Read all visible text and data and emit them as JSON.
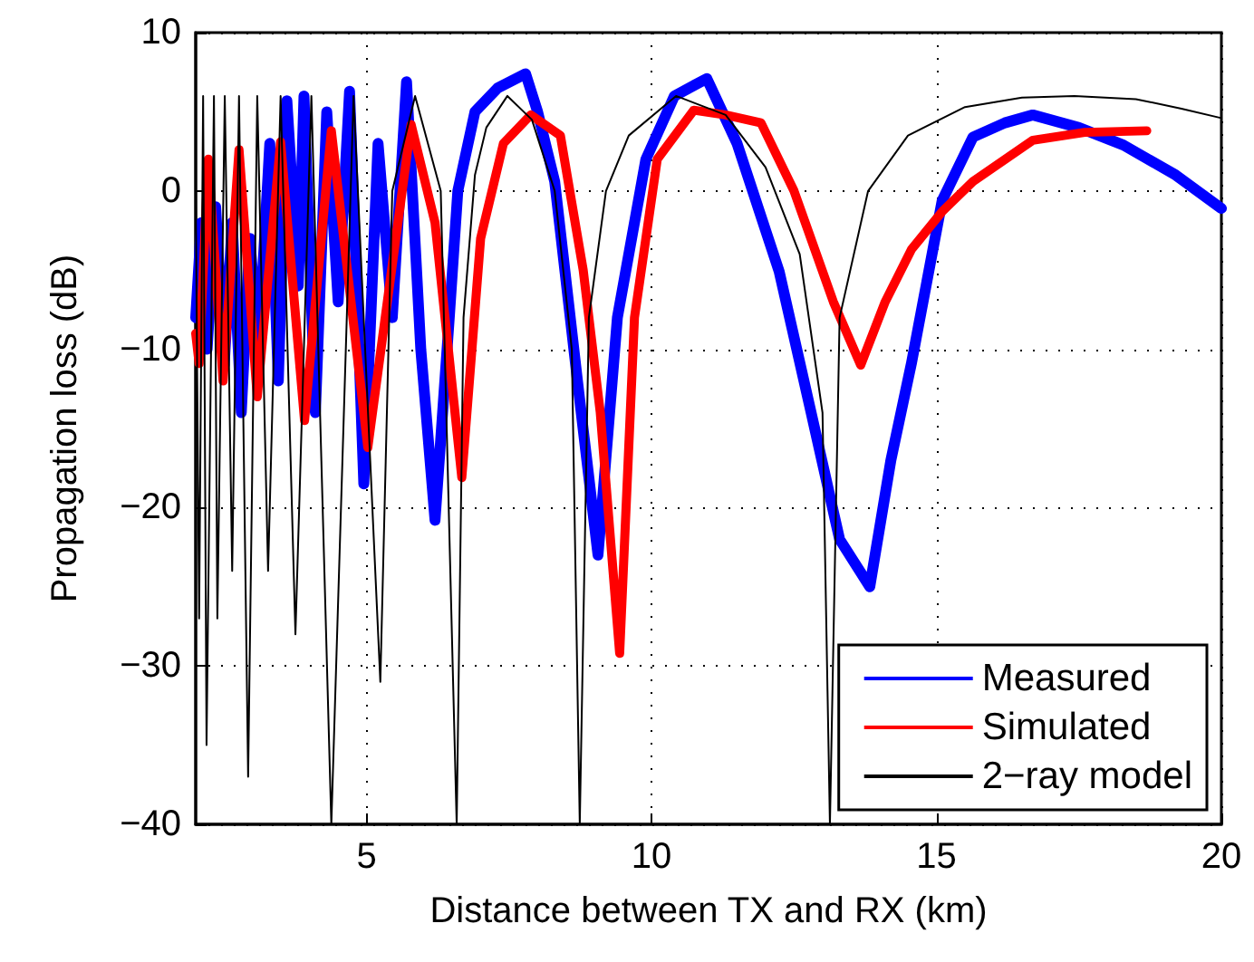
{
  "chart_data": {
    "type": "line",
    "xlabel": "Distance between TX and RX (km)",
    "ylabel": "Propagation loss (dB)",
    "xlim": [
      2,
      20
    ],
    "xticks": [
      5,
      10,
      15,
      20
    ],
    "ylim": [
      -40,
      10
    ],
    "yticks": [
      -40,
      -30,
      -20,
      -10,
      0,
      10
    ],
    "grid": true,
    "legend": "bottom right",
    "marker": "none",
    "line_style": "solid",
    "series": [
      {
        "name": "Measured",
        "color": "#0000ff",
        "x": [
          2.0,
          2.1,
          2.2,
          2.35,
          2.5,
          2.64,
          2.8,
          2.95,
          3.1,
          3.3,
          3.45,
          3.6,
          3.8,
          3.9,
          4.1,
          4.3,
          4.5,
          4.7,
          4.95,
          5.2,
          5.45,
          5.7,
          5.95,
          6.2,
          6.45,
          6.6,
          6.9,
          7.3,
          7.79,
          8.0,
          8.3,
          8.7,
          9.06,
          9.4,
          9.9,
          10.4,
          10.97,
          11.5,
          12.24,
          12.8,
          13.3,
          13.83,
          14.2,
          14.56,
          15.1,
          15.64,
          16.2,
          16.69,
          17.5,
          18.28,
          19.2,
          20.0
        ],
        "values": [
          -8,
          -2,
          -10,
          -1,
          -11,
          -2,
          -14,
          -3,
          -10,
          3,
          -12,
          5.7,
          -6,
          6,
          -14,
          5,
          -7,
          6.3,
          -18.5,
          3,
          -8,
          6.9,
          -10,
          -20.8,
          -8,
          0,
          5,
          6.5,
          7.4,
          5,
          0.6,
          -12,
          -23,
          -8,
          2,
          6,
          7.1,
          3,
          -5.1,
          -14,
          -22,
          -25,
          -17,
          -10.9,
          -0.6,
          3.4,
          4.3,
          4.8,
          4.0,
          2.9,
          1.0,
          -1.1
        ]
      },
      {
        "name": "Simulated",
        "color": "#ff0000",
        "x": [
          2.0,
          2.06,
          2.22,
          2.48,
          2.76,
          3.08,
          3.49,
          3.91,
          4.38,
          5.02,
          5.78,
          6.2,
          6.67,
          7.0,
          7.4,
          7.88,
          8.4,
          8.8,
          9.1,
          9.44,
          9.7,
          10.1,
          10.74,
          11.3,
          11.92,
          12.5,
          13.19,
          13.67,
          14.1,
          14.56,
          15.1,
          15.64,
          16.69,
          17.6,
          18.69
        ],
        "values": [
          -9,
          -10.9,
          2,
          -12,
          2.6,
          -13,
          3.1,
          -14.5,
          3.8,
          -16.2,
          4.2,
          -2,
          -18.1,
          -3,
          3,
          4.8,
          3.5,
          -5,
          -14,
          -29.2,
          -8,
          2,
          5.1,
          4.8,
          4.3,
          0,
          -7,
          -11,
          -7,
          -3.7,
          -1.3,
          0.6,
          3.2,
          3.7,
          3.8
        ]
      },
      {
        "name": "2−ray model",
        "color": "#000000",
        "x": [
          2.0,
          2.06,
          2.13,
          2.19,
          2.32,
          2.38,
          2.51,
          2.64,
          2.76,
          2.92,
          3.08,
          3.27,
          3.49,
          3.75,
          4.03,
          4.38,
          4.77,
          5.24,
          5.45,
          5.85,
          6.3,
          6.58,
          6.7,
          6.9,
          7.1,
          7.47,
          7.9,
          8.3,
          8.6,
          8.74,
          8.9,
          9.2,
          9.6,
          10.43,
          11.3,
          12.0,
          12.6,
          13.0,
          13.13,
          13.3,
          13.8,
          14.5,
          15.5,
          16.5,
          17.42,
          18.5,
          19.3,
          20.0
        ],
        "values": [
          0,
          -27,
          6,
          -35,
          6,
          -27,
          6,
          -24,
          6,
          -37,
          6,
          -24,
          6,
          -28,
          6,
          -40,
          6,
          -31,
          0,
          6,
          0,
          -40,
          -8,
          1,
          4,
          6,
          4.5,
          0,
          -10,
          -40,
          -8,
          0,
          3.5,
          6,
          4.8,
          1.5,
          -4,
          -14,
          -40,
          -8,
          0,
          3.5,
          5.3,
          5.9,
          6,
          5.8,
          5.2,
          4.6
        ]
      }
    ]
  }
}
